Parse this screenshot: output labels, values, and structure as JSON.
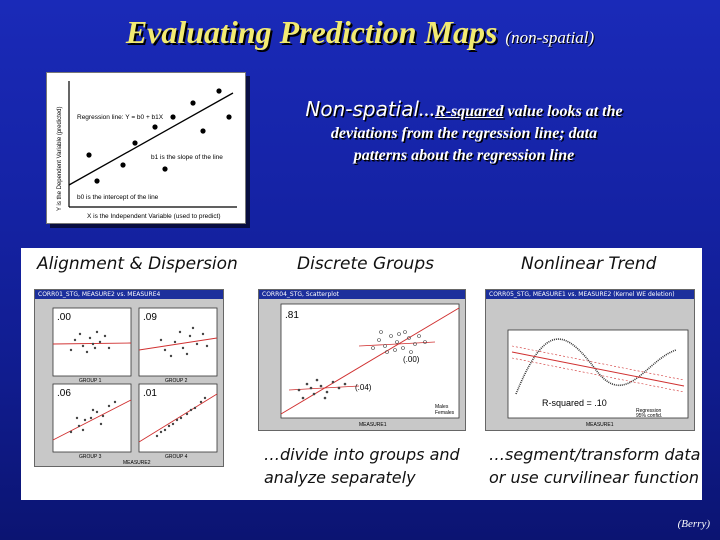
{
  "slide": {
    "title": "Evaluating Prediction Maps",
    "title_sub": "(non-spatial)",
    "credit": "(Berry)"
  },
  "regression_figure": {
    "regline_label": "Regression line: Y = b0 + b1X",
    "slope_label": "b1 is the slope of the line",
    "intercept_label": "b0 is the intercept of the line",
    "x_axis_label": "X is the Independent Variable (used to predict)",
    "y_axis_label": "Y is the Dependent Variable (predicted)"
  },
  "description": {
    "lead": "Non-spatial",
    "ellipsis": "…",
    "rsq": "R-squared",
    "rest_line1": " value looks at the",
    "rest_line2": "deviations from the regression line; data",
    "rest_line3": "patterns about the regression line"
  },
  "panels": {
    "alignment": {
      "heading": "Alignment & Dispersion",
      "window_title": "CORR01_STG, MEASURE2 vs. MEASURE4",
      "r2_values": [
        ".00",
        ".09",
        ".06",
        ".01"
      ],
      "group_labels": [
        "GROUP 1",
        "GROUP 2",
        "GROUP 3",
        "GROUP 4"
      ],
      "axis_label": "MEASURE2"
    },
    "discrete": {
      "heading": "Discrete Groups",
      "window_title": "CORR04_STG, Scatterplot",
      "r2_all": ".81",
      "r2_upper": "(.00)",
      "r2_lower": "(.04)",
      "axis_label": "MEASURE1",
      "legend": [
        "Males",
        "Females"
      ]
    },
    "nonlinear": {
      "heading": "Nonlinear Trend",
      "window_title": "CORR05_STG, MEASURE1 vs. MEASURE2 (Kernel WE deletion)",
      "r2_label": "R-squared = .10",
      "axis_label": "MEASURE1",
      "legend": [
        "Regression",
        "95% confid."
      ]
    }
  },
  "captions": {
    "discrete_line1": "…divide into groups and",
    "discrete_line2": "analyze separately",
    "nonlinear_line1": "…segment/transform data",
    "nonlinear_line2": "or use curvilinear function"
  },
  "colors": {
    "background": "#1523a6",
    "title": "#f2ea72",
    "panel": "#ffffff",
    "window_titlebar": "#1c2f9c",
    "trend_line": "#d03030"
  }
}
